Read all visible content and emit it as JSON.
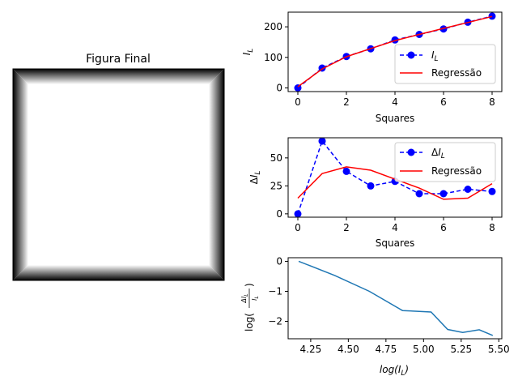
{
  "image_panel": {
    "title": "Figura Final"
  },
  "chart_data": [
    {
      "type": "line",
      "xlabel": "Squares",
      "ylabel": "I_L",
      "xlim": [
        -0.4,
        8.4
      ],
      "ylim": [
        -12,
        248
      ],
      "xticks": [
        0,
        2,
        4,
        6,
        8
      ],
      "yticks": [
        0,
        100,
        200
      ],
      "grid": false,
      "legend_position": "lower-right",
      "series": [
        {
          "name": "I_L",
          "style": "dashed-markers",
          "color": "#0000ff",
          "x": [
            0,
            1,
            2,
            3,
            4,
            5,
            6,
            7,
            8
          ],
          "y": [
            0,
            65,
            103,
            128,
            157,
            175,
            193,
            215,
            235
          ]
        },
        {
          "name": "Regressão",
          "style": "solid",
          "color": "#ff0000",
          "x": [
            0,
            1,
            2,
            3,
            4,
            5,
            6,
            7,
            8
          ],
          "y": [
            4,
            62,
            102,
            129,
            155,
            175,
            195,
            214,
            234
          ]
        }
      ]
    },
    {
      "type": "line",
      "xlabel": "Squares",
      "ylabel": "ΔI_L",
      "xlim": [
        -0.4,
        8.4
      ],
      "ylim": [
        -3,
        68
      ],
      "xticks": [
        0,
        2,
        4,
        6,
        8
      ],
      "yticks": [
        0,
        25,
        50
      ],
      "grid": false,
      "legend_position": "upper-right",
      "series": [
        {
          "name": "ΔI_L",
          "style": "dashed-markers",
          "color": "#0000ff",
          "x": [
            0,
            1,
            2,
            3,
            4,
            5,
            6,
            7,
            8
          ],
          "y": [
            0,
            65,
            38,
            25,
            29,
            18,
            18,
            22,
            20
          ]
        },
        {
          "name": "Regressão",
          "style": "solid",
          "color": "#ff0000",
          "x": [
            0,
            1,
            2,
            3,
            4,
            5,
            6,
            7,
            8
          ],
          "y": [
            14,
            36,
            42,
            39,
            31,
            23,
            13,
            14,
            27
          ]
        }
      ]
    },
    {
      "type": "line",
      "xlabel": "log(I_L)",
      "ylabel": "log(ΔI_L / I_L)",
      "xlim": [
        4.1,
        5.52
      ],
      "ylim": [
        -2.58,
        0.12
      ],
      "xticks": [
        "4.25",
        "4.50",
        "4.75",
        "5.00",
        "5.25",
        "5.50"
      ],
      "yticks": [
        0,
        -1,
        -2
      ],
      "grid": false,
      "series": [
        {
          "color": "#1f77b4",
          "x": [
            4.17,
            4.41,
            4.64,
            4.86,
            5.05,
            5.16,
            5.26,
            5.37,
            5.46
          ],
          "y": [
            0.0,
            -0.47,
            -1.0,
            -1.64,
            -1.69,
            -2.27,
            -2.37,
            -2.28,
            -2.47
          ]
        }
      ]
    }
  ]
}
